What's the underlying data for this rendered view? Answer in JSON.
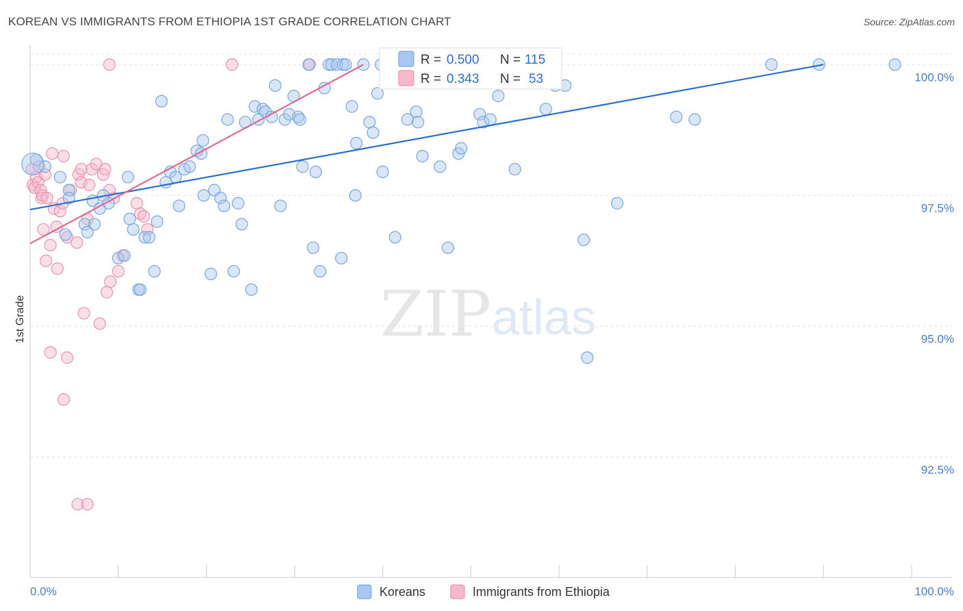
{
  "title": "KOREAN VS IMMIGRANTS FROM ETHIOPIA 1ST GRADE CORRELATION CHART",
  "source": "Source: ZipAtlas.com",
  "watermark": {
    "zip": "ZIP",
    "atlas": "atlas"
  },
  "legend": {
    "series": [
      {
        "r_label": "R =",
        "r_value": "0.500",
        "n_label": "N =",
        "n_value": "115"
      },
      {
        "r_label": "R =",
        "r_value": "0.343",
        "n_label": "N =",
        "n_value": "53"
      }
    ]
  },
  "bottom_legend": [
    "Koreans",
    "Immigrants from Ethiopia"
  ],
  "colors": {
    "blue_fill": "#a9c8ef",
    "blue_stroke": "#7ba7dc",
    "blue_line": "#2a6fcf",
    "pink_fill": "#f5b9cb",
    "pink_stroke": "#ec93ae",
    "pink_line": "#e06890",
    "axis_text": "#4a7cc7",
    "grid": "#e4e4e4"
  },
  "chart_data": {
    "type": "scatter",
    "title": "KOREAN VS IMMIGRANTS FROM ETHIOPIA 1ST GRADE CORRELATION CHART",
    "ylabel": "1st Grade",
    "xlabel": "",
    "xlim": [
      0,
      100
    ],
    "ylim": [
      90.2,
      100.2
    ],
    "x_tick_labels": [
      "0.0%",
      "100.0%"
    ],
    "y_ticks": [
      92.5,
      95.0,
      97.5,
      100.0
    ],
    "y_tick_labels": [
      "92.5%",
      "95.0%",
      "97.5%",
      "100.0%"
    ],
    "grid": true,
    "legend_position": "top-center",
    "series": [
      {
        "name": "Koreans",
        "r": 0.5,
        "n": 115,
        "trend": [
          [
            0,
            97.23
          ],
          [
            90,
            100.0
          ]
        ],
        "points": [
          [
            0.7,
            98.18
          ],
          [
            1.7,
            98.05
          ],
          [
            3.4,
            97.85
          ],
          [
            4.4,
            97.6
          ],
          [
            4.4,
            97.45
          ],
          [
            4.0,
            96.75
          ],
          [
            6.2,
            96.95
          ],
          [
            6.5,
            96.8
          ],
          [
            7.1,
            97.4
          ],
          [
            7.3,
            96.95
          ],
          [
            7.9,
            97.25
          ],
          [
            8.3,
            97.5
          ],
          [
            8.9,
            97.35
          ],
          [
            10.0,
            96.3
          ],
          [
            10.7,
            96.35
          ],
          [
            11.1,
            97.85
          ],
          [
            11.3,
            97.05
          ],
          [
            11.7,
            96.85
          ],
          [
            12.3,
            95.7
          ],
          [
            12.5,
            95.7
          ],
          [
            13.0,
            96.7
          ],
          [
            13.5,
            96.7
          ],
          [
            14.1,
            96.05
          ],
          [
            14.4,
            97.0
          ],
          [
            14.9,
            99.3
          ],
          [
            15.4,
            97.75
          ],
          [
            15.9,
            97.95
          ],
          [
            16.5,
            97.85
          ],
          [
            16.9,
            97.3
          ],
          [
            17.5,
            98.0
          ],
          [
            18.1,
            98.05
          ],
          [
            18.9,
            98.35
          ],
          [
            19.4,
            98.3
          ],
          [
            19.6,
            98.55
          ],
          [
            19.7,
            97.5
          ],
          [
            20.5,
            96.0
          ],
          [
            20.9,
            97.6
          ],
          [
            21.6,
            97.45
          ],
          [
            22.0,
            97.3
          ],
          [
            22.4,
            98.95
          ],
          [
            23.1,
            96.05
          ],
          [
            23.6,
            97.35
          ],
          [
            24.0,
            96.95
          ],
          [
            24.4,
            98.9
          ],
          [
            25.1,
            95.7
          ],
          [
            25.5,
            99.2
          ],
          [
            25.9,
            98.95
          ],
          [
            26.4,
            99.15
          ],
          [
            26.7,
            99.1
          ],
          [
            27.4,
            99.0
          ],
          [
            27.8,
            99.6
          ],
          [
            28.4,
            97.3
          ],
          [
            28.9,
            98.95
          ],
          [
            29.4,
            99.05
          ],
          [
            29.9,
            99.4
          ],
          [
            30.4,
            99.0
          ],
          [
            30.6,
            98.95
          ],
          [
            30.9,
            98.05
          ],
          [
            31.6,
            100.0
          ],
          [
            32.1,
            96.5
          ],
          [
            32.4,
            97.95
          ],
          [
            32.9,
            96.05
          ],
          [
            33.4,
            99.55
          ],
          [
            33.9,
            100.0
          ],
          [
            34.2,
            100.0
          ],
          [
            34.8,
            100.0
          ],
          [
            35.3,
            96.3
          ],
          [
            35.5,
            100.0
          ],
          [
            35.8,
            100.0
          ],
          [
            36.5,
            99.2
          ],
          [
            36.9,
            97.5
          ],
          [
            37.0,
            98.5
          ],
          [
            37.8,
            100.0
          ],
          [
            38.5,
            98.9
          ],
          [
            38.9,
            98.7
          ],
          [
            39.4,
            99.45
          ],
          [
            39.8,
            100.0
          ],
          [
            40.0,
            97.95
          ],
          [
            40.5,
            100.0
          ],
          [
            41.4,
            96.7
          ],
          [
            41.9,
            100.0
          ],
          [
            42.2,
            100.0
          ],
          [
            42.8,
            98.95
          ],
          [
            43.5,
            100.0
          ],
          [
            43.8,
            99.1
          ],
          [
            44.0,
            98.9
          ],
          [
            44.5,
            98.25
          ],
          [
            45.1,
            100.0
          ],
          [
            45.3,
            100.0
          ],
          [
            46.5,
            98.05
          ],
          [
            47.1,
            100.0
          ],
          [
            47.4,
            96.5
          ],
          [
            48.1,
            100.0
          ],
          [
            48.6,
            98.3
          ],
          [
            48.9,
            98.4
          ],
          [
            49.9,
            100.0
          ],
          [
            51.0,
            99.05
          ],
          [
            51.4,
            98.9
          ],
          [
            52.2,
            98.95
          ],
          [
            53.1,
            99.4
          ],
          [
            54.6,
            100.0
          ],
          [
            55.0,
            98.0
          ],
          [
            58.5,
            99.15
          ],
          [
            59.1,
            100.0
          ],
          [
            59.6,
            99.6
          ],
          [
            60.7,
            99.6
          ],
          [
            62.8,
            96.65
          ],
          [
            63.2,
            94.4
          ],
          [
            66.6,
            97.35
          ],
          [
            73.3,
            99.0
          ],
          [
            75.4,
            98.95
          ],
          [
            84.1,
            100.0
          ],
          [
            89.5,
            100.0
          ],
          [
            98.1,
            100.0
          ],
          [
            0.3,
            98.1
          ]
        ]
      },
      {
        "name": "Immigrants from Ethiopia",
        "r": 0.343,
        "n": 53,
        "trend": [
          [
            0,
            96.58
          ],
          [
            37.8,
            100.0
          ]
        ],
        "points": [
          [
            0.2,
            98.0
          ],
          [
            0.3,
            97.7
          ],
          [
            0.5,
            97.65
          ],
          [
            0.7,
            97.85
          ],
          [
            0.9,
            97.75
          ],
          [
            1.0,
            98.05
          ],
          [
            1.2,
            97.6
          ],
          [
            1.3,
            97.45
          ],
          [
            1.4,
            97.5
          ],
          [
            1.5,
            96.85
          ],
          [
            1.7,
            97.9
          ],
          [
            1.8,
            96.25
          ],
          [
            1.9,
            97.45
          ],
          [
            2.3,
            96.55
          ],
          [
            2.5,
            98.3
          ],
          [
            2.7,
            97.25
          ],
          [
            3.0,
            96.9
          ],
          [
            3.1,
            96.1
          ],
          [
            3.4,
            97.2
          ],
          [
            3.7,
            97.35
          ],
          [
            3.8,
            98.25
          ],
          [
            4.2,
            96.7
          ],
          [
            4.6,
            97.6
          ],
          [
            5.3,
            96.6
          ],
          [
            5.5,
            97.9
          ],
          [
            5.8,
            98.0
          ],
          [
            5.8,
            97.75
          ],
          [
            6.1,
            95.25
          ],
          [
            6.5,
            97.05
          ],
          [
            6.7,
            97.7
          ],
          [
            7.0,
            98.0
          ],
          [
            7.5,
            98.1
          ],
          [
            7.9,
            95.05
          ],
          [
            8.3,
            97.9
          ],
          [
            8.5,
            98.0
          ],
          [
            8.7,
            95.65
          ],
          [
            9.0,
            97.6
          ],
          [
            9.1,
            95.85
          ],
          [
            9.5,
            97.45
          ],
          [
            10.0,
            96.05
          ],
          [
            10.5,
            96.35
          ],
          [
            12.1,
            97.35
          ],
          [
            12.5,
            97.15
          ],
          [
            12.9,
            97.1
          ],
          [
            13.3,
            96.85
          ],
          [
            2.3,
            94.5
          ],
          [
            4.2,
            94.4
          ],
          [
            3.8,
            93.6
          ],
          [
            5.4,
            91.6
          ],
          [
            6.5,
            91.6
          ],
          [
            9.0,
            100.0
          ],
          [
            22.9,
            100.0
          ],
          [
            31.7,
            100.0
          ]
        ]
      }
    ]
  }
}
